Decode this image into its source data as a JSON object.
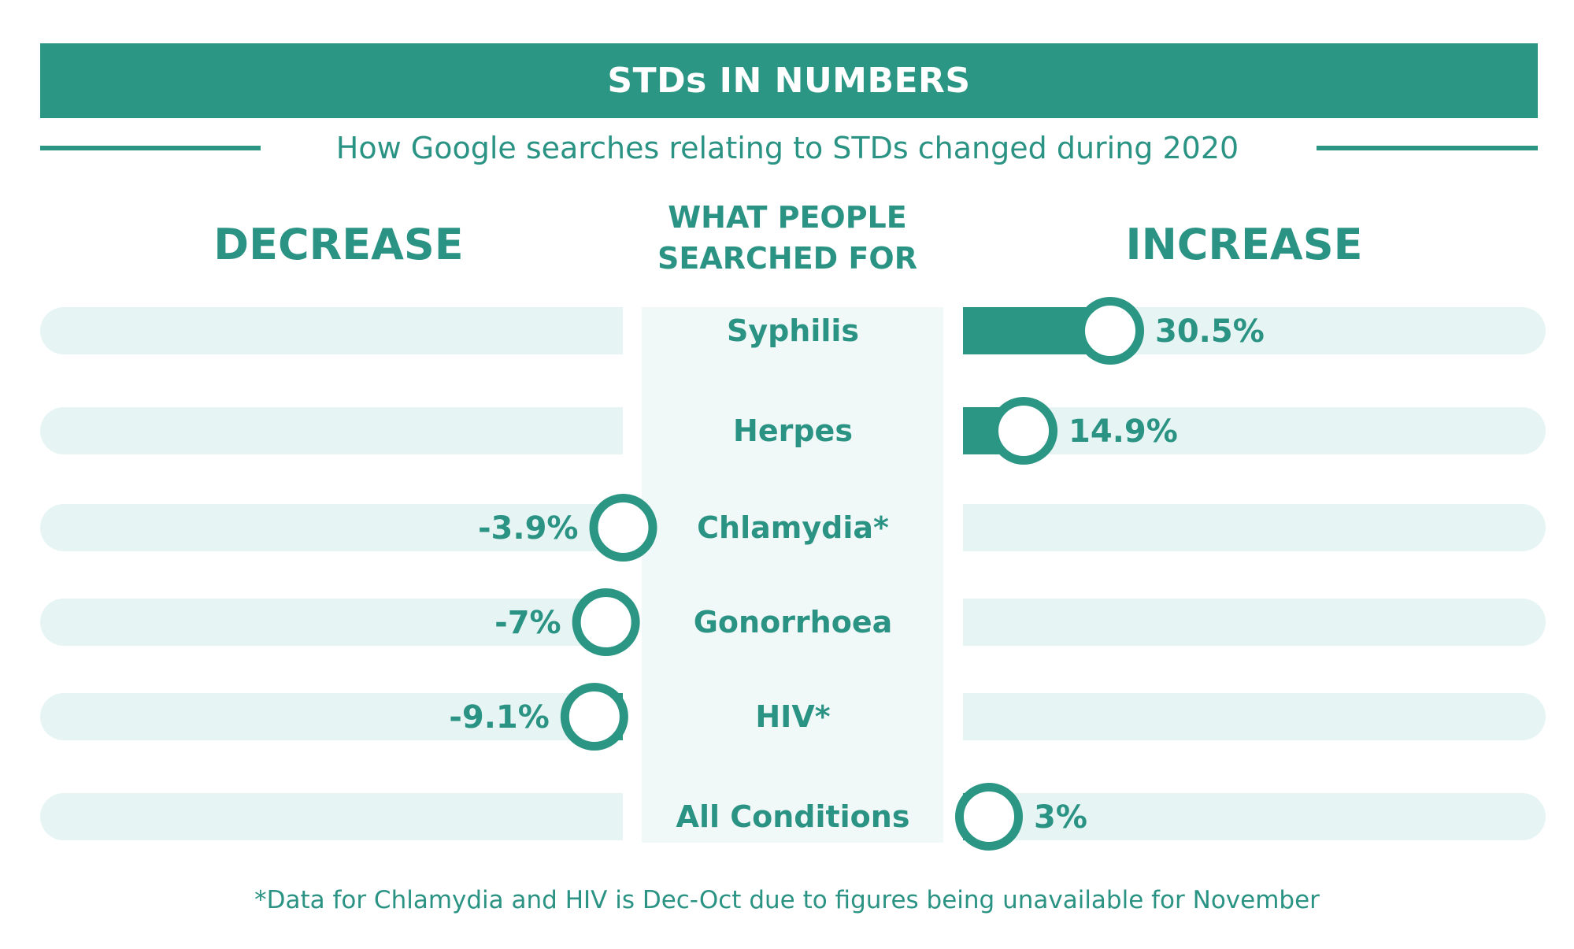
{
  "header": {
    "title": "STDs IN NUMBERS",
    "subtitle": "How Google searches relating to STDs changed during 2020"
  },
  "columns": {
    "left": "DECREASE",
    "center_line1": "WHAT PEOPLE",
    "center_line2": "SEARCHED FOR",
    "right": "INCREASE"
  },
  "footnote": "*Data for Chlamydia and HIV is Dec-Oct due to figures being unavailable for November",
  "colors": {
    "accent": "#2c9684",
    "track": "#e6f4f3",
    "center_panel": "#f1f8f8",
    "text": "#2a9384"
  },
  "chart_data": {
    "type": "bar",
    "categories": [
      "Syphilis",
      "Herpes",
      "Chlamydia*",
      "Gonorrhoea",
      "HIV*",
      "All Conditions"
    ],
    "values": [
      30.5,
      14.9,
      -3.9,
      -7,
      -9.1,
      3
    ],
    "value_labels": [
      "30.5%",
      "14.9%",
      "-3.9%",
      "-7%",
      "-9.1%",
      "3%"
    ],
    "unit": "%",
    "orientation": "horizontal-diverging",
    "grid": false,
    "legend": "none"
  }
}
